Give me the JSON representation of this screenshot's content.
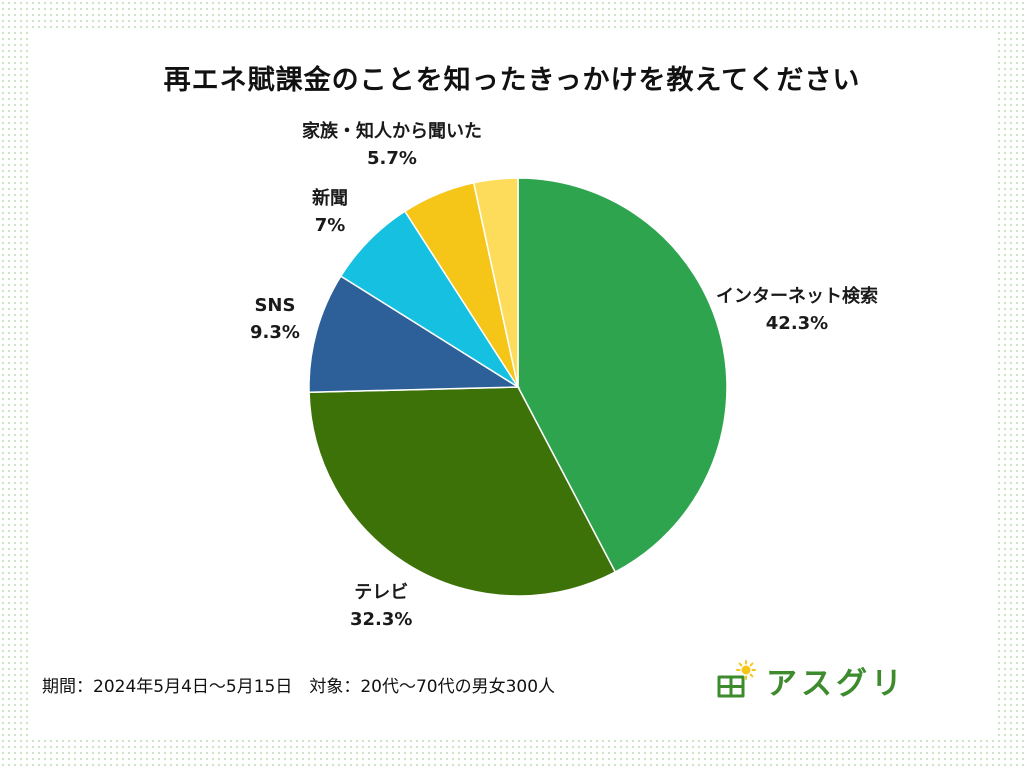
{
  "chart_data": {
    "type": "pie",
    "title": "再エネ賦課金のことを知ったきっかけを教えてください",
    "unit": "%",
    "categories": [
      "インターネット検索",
      "テレビ",
      "SNS",
      "新聞",
      "家族・知人から聞いた",
      ""
    ],
    "values": [
      42.3,
      32.3,
      9.3,
      7,
      5.7,
      3.4
    ],
    "value_labels": [
      "42.3%",
      "32.3%",
      "9.3%",
      "7%",
      "5.7%",
      ""
    ],
    "colors": [
      "#2ea44f",
      "#3d7209",
      "#2d5f99",
      "#16c0e0",
      "#f5c518",
      "#fddc5c"
    ],
    "start_angle_deg": 0,
    "direction": "clockwise",
    "legend": "none"
  },
  "footer": {
    "note": "期間：2024年5月4日～5月15日　対象：20代～70代の男女300人"
  },
  "brand": {
    "name": "アスグリ",
    "icon": "solar-panel-sun-icon",
    "color": "#3e8b2e"
  }
}
